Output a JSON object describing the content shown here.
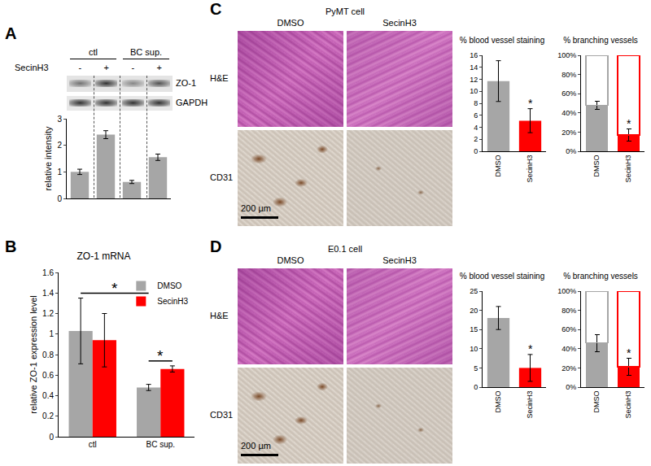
{
  "panels": {
    "A": {
      "label": "A",
      "treatment": "SecinH3",
      "signs": [
        "-",
        "+",
        "-",
        "+"
      ],
      "groups": [
        "ctl",
        "BC sup."
      ],
      "bands": [
        "ZO-1",
        "GAPDH"
      ]
    },
    "B": {
      "label": "B"
    },
    "C": {
      "label": "C",
      "title": "PyMT cell",
      "columns": [
        "DMSO",
        "SecinH3"
      ],
      "rows": [
        "H&E",
        "CD31"
      ],
      "scale_bar": "200 µm"
    },
    "D": {
      "label": "D",
      "title": "E0.1 cell",
      "columns": [
        "DMSO",
        "SecinH3"
      ],
      "rows": [
        "H&E",
        "CD31"
      ],
      "scale_bar": "200 µm"
    }
  },
  "chart_data": [
    {
      "type": "bar",
      "y_label": "relative intensity",
      "categories": [
        null,
        null,
        null,
        null
      ],
      "values": [
        1.0,
        2.4,
        0.62,
        1.55
      ],
      "errors": [
        0.1,
        0.15,
        0.06,
        0.12
      ],
      "color": "#a6a6a6",
      "ylim": [
        0,
        3
      ],
      "yticks": [
        0,
        1,
        2,
        3
      ],
      "tick_labels": "y"
    },
    {
      "type": "bar",
      "title": "ZO-1 mRNA",
      "y_label": "relative ZO-1 expression level",
      "categories": [
        "ctl",
        "BC sup."
      ],
      "series": [
        {
          "name": "DMSO",
          "color": "#a6a6a6",
          "values": [
            1.03,
            0.48
          ],
          "errors": [
            0.32,
            0.03
          ]
        },
        {
          "name": "SecinH3",
          "color": "#ff0000",
          "values": [
            0.94,
            0.66
          ],
          "errors": [
            0.26,
            0.03
          ]
        }
      ],
      "ylim": [
        0,
        1.6
      ],
      "yticks": [
        0,
        0.2,
        0.4,
        0.6,
        0.8,
        1,
        1.2,
        1.4,
        1.6
      ],
      "legend": "top right",
      "annotations": [
        {
          "text": "*",
          "categories": [
            "ctl",
            "BC sup."
          ],
          "series": [
            "DMSO",
            "DMSO"
          ]
        },
        {
          "text": "*",
          "categories": [
            "BC sup.",
            "BC sup."
          ],
          "series": [
            "DMSO",
            "SecinH3"
          ]
        }
      ]
    },
    {
      "type": "bar",
      "title": "% blood vessel staining",
      "categories": [
        "DMSO",
        "SecinH3"
      ],
      "values": [
        11.7,
        5.1
      ],
      "errors": [
        3.4,
        2.0
      ],
      "colors": [
        "#a6a6a6",
        "#ff0000"
      ],
      "ylim": [
        0,
        16
      ],
      "yticks": [
        0,
        2,
        4,
        6,
        8,
        10,
        12,
        14,
        16
      ],
      "annotations": [
        {
          "text": "*",
          "categories": [
            "SecinH3"
          ]
        }
      ]
    },
    {
      "type": "bar",
      "title": "% branching vessels",
      "categories": [
        "DMSO",
        "SecinH3"
      ],
      "stacked": true,
      "series": [
        {
          "values": [
            48,
            17
          ],
          "errors": [
            4,
            6
          ],
          "colors": [
            "#a6a6a6",
            "#ff0000"
          ]
        },
        {
          "values": [
            52,
            83
          ],
          "colors": [
            "#a6a6a6",
            "#ff0000"
          ],
          "marker": "hollow"
        }
      ],
      "ylim": [
        0,
        100
      ],
      "yticks": [
        {
          "value": 0,
          "label": "0%"
        },
        {
          "value": 20,
          "label": "20%"
        },
        {
          "value": 40,
          "label": "40%"
        },
        {
          "value": 60,
          "label": "60%"
        },
        {
          "value": 80,
          "label": "80%"
        },
        {
          "value": 100,
          "label": "100%"
        }
      ],
      "annotations": [
        {
          "text": "*",
          "categories": [
            "SecinH3"
          ]
        }
      ]
    },
    {
      "type": "bar",
      "title": "% blood vessel staining",
      "categories": [
        "DMSO",
        "SecinH3"
      ],
      "values": [
        18,
        5
      ],
      "errors": [
        3,
        3.5
      ],
      "colors": [
        "#a6a6a6",
        "#ff0000"
      ],
      "ylim": [
        0,
        25
      ],
      "yticks": [
        0,
        5,
        10,
        15,
        20,
        25
      ],
      "annotations": [
        {
          "text": "*",
          "categories": [
            "SecinH3"
          ]
        }
      ]
    },
    {
      "type": "bar",
      "title": "% branching vessels",
      "categories": [
        "DMSO",
        "SecinH3"
      ],
      "stacked": true,
      "series": [
        {
          "values": [
            46,
            21
          ],
          "errors": [
            9,
            9
          ],
          "colors": [
            "#a6a6a6",
            "#ff0000"
          ]
        },
        {
          "values": [
            54,
            79
          ],
          "colors": [
            "#a6a6a6",
            "#ff0000"
          ],
          "marker": "hollow"
        }
      ],
      "ylim": [
        0,
        100
      ],
      "yticks": [
        {
          "value": 0,
          "label": "0%"
        },
        {
          "value": 20,
          "label": "20%"
        },
        {
          "value": 40,
          "label": "40%"
        },
        {
          "value": 60,
          "label": "60%"
        },
        {
          "value": 80,
          "label": "80%"
        },
        {
          "value": 100,
          "label": "100%"
        }
      ],
      "annotations": [
        {
          "text": "*",
          "categories": [
            "SecinH3"
          ]
        }
      ]
    }
  ]
}
